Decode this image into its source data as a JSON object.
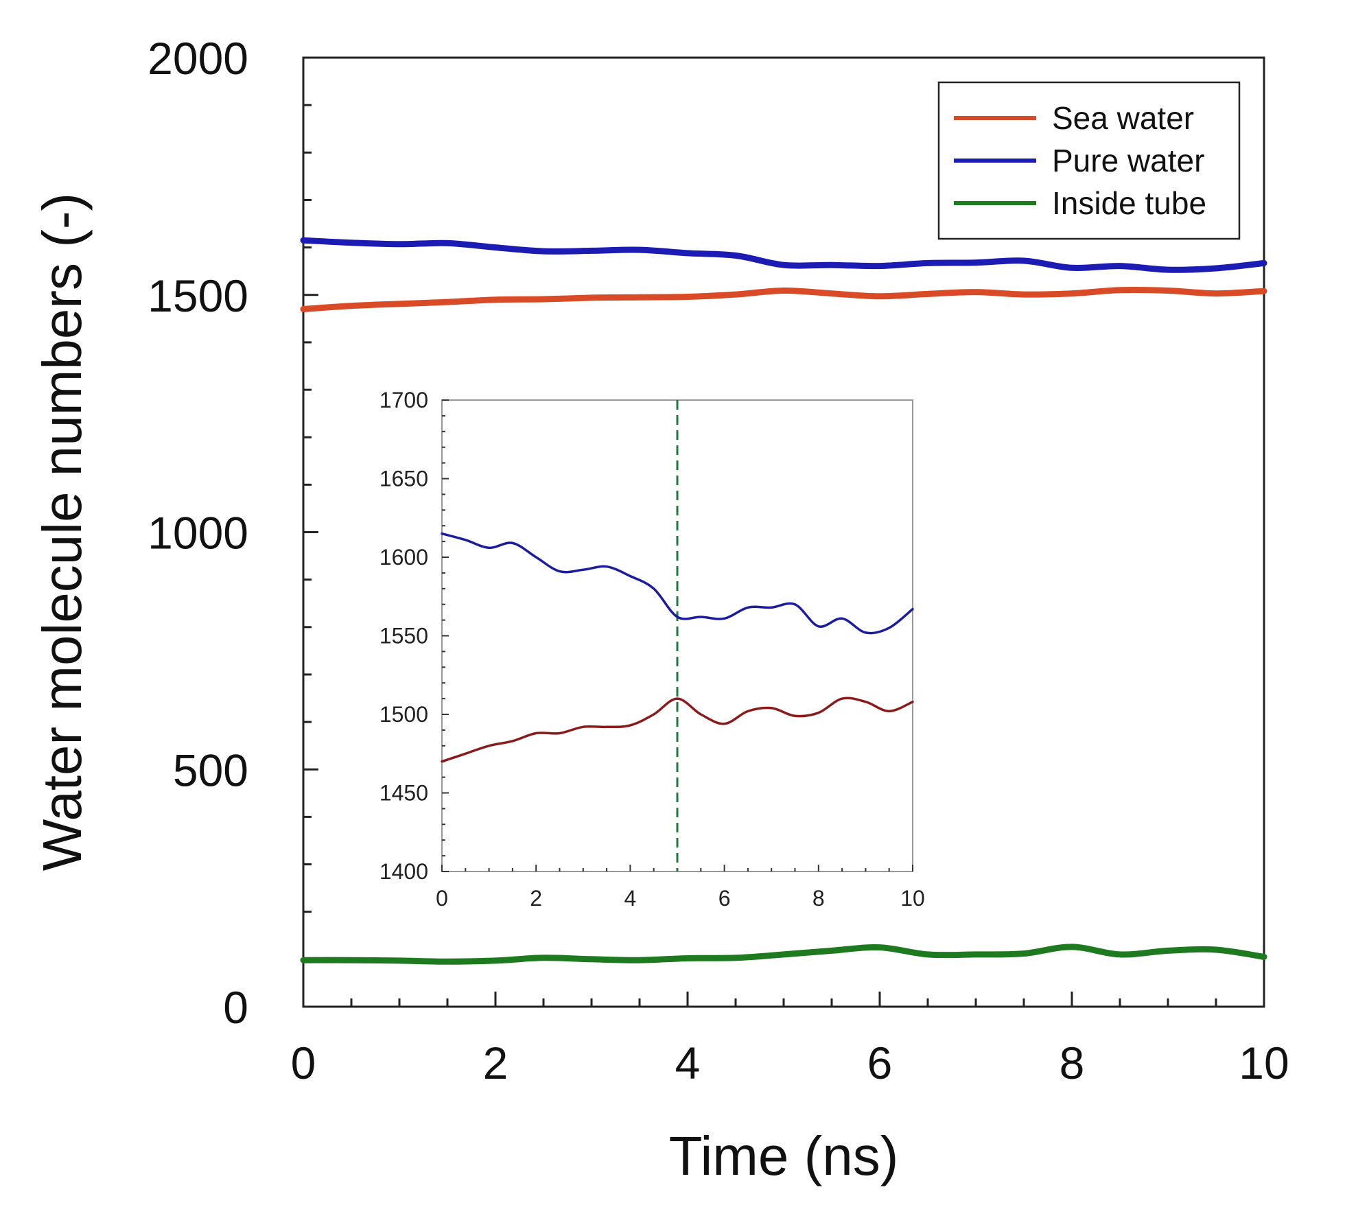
{
  "chart_data": [
    {
      "type": "line",
      "xlabel": "Time (ns)",
      "ylabel": "Water molecule numbers (-)",
      "xlim": [
        0,
        10
      ],
      "ylim": [
        0,
        2000
      ],
      "xticks": [
        "0",
        "2",
        "4",
        "6",
        "8",
        "10"
      ],
      "yticks": [
        "0",
        "500",
        "1000",
        "1500",
        "2000"
      ],
      "grid": false,
      "legend": "top-right",
      "series": [
        {
          "name": "Sea water",
          "color": "#d94a26",
          "x": [
            0,
            0.5,
            1,
            1.5,
            2,
            2.5,
            3,
            3.5,
            4,
            4.5,
            5,
            5.5,
            6,
            6.5,
            7,
            7.5,
            8,
            8.5,
            9,
            9.5,
            10
          ],
          "y": [
            1470,
            1477,
            1481,
            1485,
            1490,
            1491,
            1494,
            1495,
            1496,
            1501,
            1509,
            1503,
            1497,
            1502,
            1506,
            1501,
            1503,
            1510,
            1509,
            1503,
            1508
          ]
        },
        {
          "name": "Pure water",
          "color": "#1c1cb4",
          "x": [
            0,
            0.5,
            1,
            1.5,
            2,
            2.5,
            3,
            3.5,
            4,
            4.5,
            5,
            5.5,
            6,
            6.5,
            7,
            7.5,
            8,
            8.5,
            9,
            9.5,
            10
          ],
          "y": [
            1615,
            1610,
            1607,
            1609,
            1600,
            1592,
            1593,
            1595,
            1588,
            1583,
            1563,
            1563,
            1561,
            1567,
            1568,
            1572,
            1557,
            1561,
            1553,
            1556,
            1567
          ]
        },
        {
          "name": "Inside tube",
          "color": "#1e7a1e",
          "x": [
            0,
            0.5,
            1,
            1.5,
            2,
            2.5,
            3,
            3.5,
            4,
            4.5,
            5,
            5.5,
            6,
            6.5,
            7,
            7.5,
            8,
            8.5,
            9,
            9.5,
            10
          ],
          "y": [
            98,
            98,
            97,
            95,
            97,
            103,
            100,
            98,
            102,
            103,
            110,
            118,
            125,
            110,
            110,
            112,
            126,
            110,
            118,
            120,
            105
          ]
        }
      ]
    },
    {
      "type": "line",
      "xlim": [
        0,
        10
      ],
      "ylim": [
        1400,
        1700
      ],
      "xticks": [
        "0",
        "2",
        "4",
        "6",
        "8",
        "10"
      ],
      "yticks": [
        "1400",
        "1450",
        "1500",
        "1550",
        "1600",
        "1650",
        "1700"
      ],
      "vline_x": 5,
      "vline_color": "#1e7a3c",
      "grid": false,
      "series": [
        {
          "color": "#8b1a1a",
          "x": [
            0,
            0.5,
            1,
            1.5,
            2,
            2.5,
            3,
            3.5,
            4,
            4.5,
            5,
            5.5,
            6,
            6.5,
            7,
            7.5,
            8,
            8.5,
            9,
            9.5,
            10
          ],
          "y": [
            1470,
            1475,
            1480,
            1483,
            1488,
            1488,
            1492,
            1492,
            1493,
            1500,
            1510,
            1500,
            1494,
            1502,
            1504,
            1499,
            1501,
            1510,
            1508,
            1502,
            1508
          ]
        },
        {
          "color": "#1c1ca0",
          "x": [
            0,
            0.5,
            1,
            1.5,
            2,
            2.5,
            3,
            3.5,
            4,
            4.5,
            5,
            5.5,
            6,
            6.5,
            7,
            7.5,
            8,
            8.5,
            9,
            9.5,
            10
          ],
          "y": [
            1615,
            1611,
            1606,
            1609,
            1600,
            1591,
            1592,
            1594,
            1588,
            1580,
            1562,
            1562,
            1561,
            1568,
            1568,
            1570,
            1556,
            1561,
            1552,
            1555,
            1567
          ]
        }
      ]
    }
  ]
}
